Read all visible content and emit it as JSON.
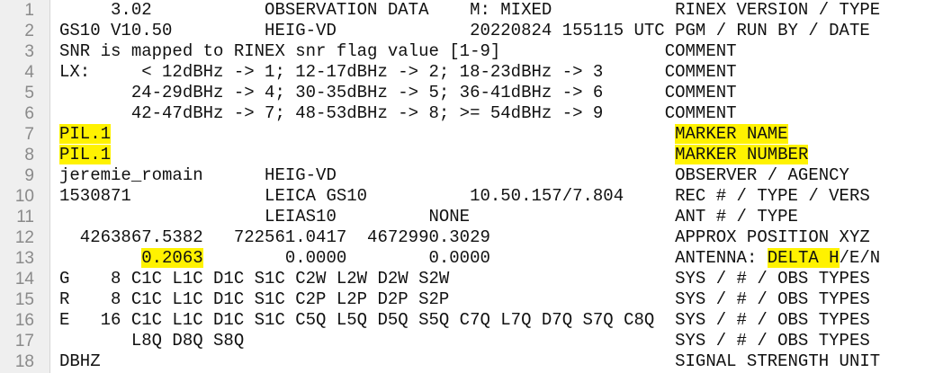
{
  "editor": {
    "lines": [
      {
        "num": "1",
        "segments": [
          {
            "text": "     3.02           OBSERVATION DATA    M: MIXED            RINEX VERSION / TYPE",
            "highlight": false
          }
        ]
      },
      {
        "num": "2",
        "segments": [
          {
            "text": "GS10 V10.50         HEIG-VD             20220824 155115 UTC PGM / RUN BY / DATE",
            "highlight": false
          }
        ]
      },
      {
        "num": "3",
        "segments": [
          {
            "text": "SNR is mapped to RINEX snr flag value [1-9]                COMMENT",
            "highlight": false
          }
        ]
      },
      {
        "num": "4",
        "segments": [
          {
            "text": "LX:     < 12dBHz -> 1; 12-17dBHz -> 2; 18-23dBHz -> 3      COMMENT",
            "highlight": false
          }
        ]
      },
      {
        "num": "5",
        "segments": [
          {
            "text": "       24-29dBHz -> 4; 30-35dBHz -> 5; 36-41dBHz -> 6      COMMENT",
            "highlight": false
          }
        ]
      },
      {
        "num": "6",
        "segments": [
          {
            "text": "       42-47dBHz -> 7; 48-53dBHz -> 8; >= 54dBHz -> 9      COMMENT",
            "highlight": false
          }
        ]
      },
      {
        "num": "7",
        "segments": [
          {
            "text": "PIL.1",
            "highlight": true
          },
          {
            "text": "                                                       ",
            "highlight": false
          },
          {
            "text": "MARKER NAME",
            "highlight": true
          }
        ]
      },
      {
        "num": "8",
        "segments": [
          {
            "text": "PIL.1",
            "highlight": true
          },
          {
            "text": "                                                       ",
            "highlight": false
          },
          {
            "text": "MARKER NUMBER",
            "highlight": true
          }
        ]
      },
      {
        "num": "9",
        "segments": [
          {
            "text": "jeremie_romain      HEIG-VD                                 OBSERVER / AGENCY",
            "highlight": false
          }
        ]
      },
      {
        "num": "10",
        "segments": [
          {
            "text": "1530871             LEICA GS10          10.50.157/7.804     REC # / TYPE / VERS",
            "highlight": false
          }
        ]
      },
      {
        "num": "11",
        "segments": [
          {
            "text": "                    LEIAS10         NONE                    ANT # / TYPE",
            "highlight": false
          }
        ]
      },
      {
        "num": "12",
        "segments": [
          {
            "text": "  4263867.5382   722561.0417  4672990.3029                  APPROX POSITION XYZ",
            "highlight": false
          }
        ]
      },
      {
        "num": "13",
        "segments": [
          {
            "text": "        ",
            "highlight": false
          },
          {
            "text": "0.2063",
            "highlight": true
          },
          {
            "text": "        0.0000        0.0000                  ANTENNA: ",
            "highlight": false
          },
          {
            "text": "DELTA H",
            "highlight": true
          },
          {
            "text": "/E/N",
            "highlight": false
          }
        ]
      },
      {
        "num": "14",
        "segments": [
          {
            "text": "G    8 C1C L1C D1C S1C C2W L2W D2W S2W                      SYS / # / OBS TYPES",
            "highlight": false
          }
        ]
      },
      {
        "num": "15",
        "segments": [
          {
            "text": "R    8 C1C L1C D1C S1C C2P L2P D2P S2P                      SYS / # / OBS TYPES",
            "highlight": false
          }
        ]
      },
      {
        "num": "16",
        "segments": [
          {
            "text": "E   16 C1C L1C D1C S1C C5Q L5Q D5Q S5Q C7Q L7Q D7Q S7Q C8Q  SYS / # / OBS TYPES",
            "highlight": false
          }
        ]
      },
      {
        "num": "17",
        "segments": [
          {
            "text": "       L8Q D8Q S8Q                                          SYS / # / OBS TYPES",
            "highlight": false
          }
        ]
      },
      {
        "num": "18",
        "segments": [
          {
            "text": "DBHZ                                                        SIGNAL STRENGTH UNIT",
            "highlight": false
          }
        ]
      }
    ]
  }
}
